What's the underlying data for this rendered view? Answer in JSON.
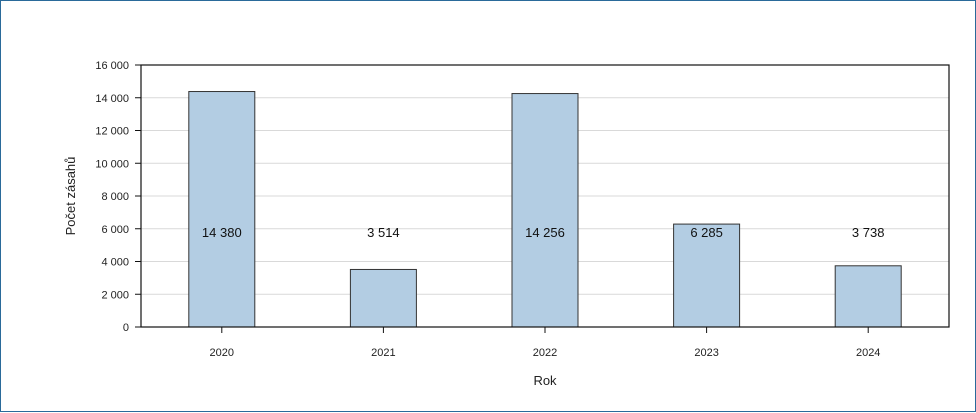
{
  "chart_data": {
    "type": "bar",
    "categories": [
      "2020",
      "2021",
      "2022",
      "2023",
      "2024"
    ],
    "values": [
      14380,
      3514,
      14256,
      6285,
      3738
    ],
    "data_labels": [
      "14 380",
      "3 514",
      "14 256",
      "6 285",
      "3 738"
    ],
    "xlabel": "Rok",
    "ylabel": "Počet zásahů",
    "ylim": [
      0,
      16000
    ],
    "yticks": [
      0,
      2000,
      4000,
      6000,
      8000,
      10000,
      12000,
      14000,
      16000
    ],
    "ytick_labels": [
      "0",
      "2 000",
      "4 000",
      "6 000",
      "8 000",
      "10 000",
      "12 000",
      "14 000",
      "16 000"
    ],
    "grid": true,
    "legend": "none",
    "bar_color": "#b3cde3",
    "bar_edge_color": "#333333",
    "grid_color": "#d9d9d9",
    "frame_color": "#2a6a9a"
  }
}
